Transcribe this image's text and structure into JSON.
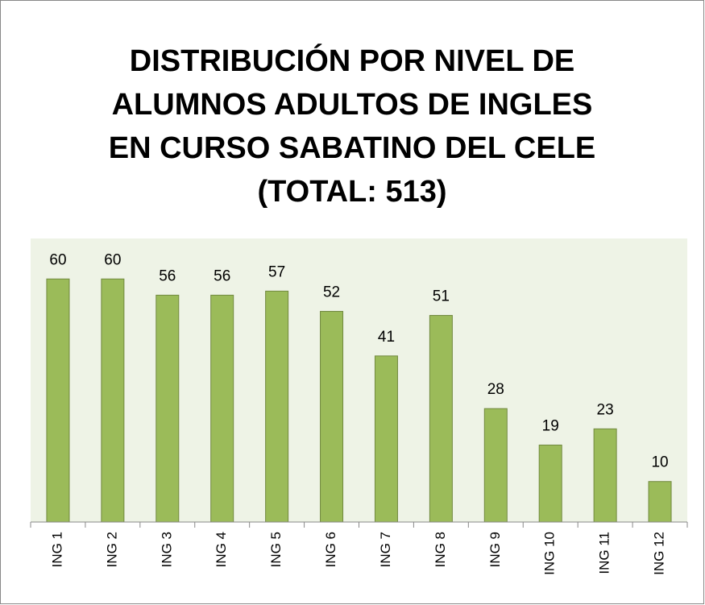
{
  "chart_data": {
    "type": "bar",
    "title": [
      "DISTRIBUCIÓN POR NIVEL DE",
      "ALUMNOS ADULTOS DE INGLES",
      "EN CURSO SABATINO DEL CELE",
      "(TOTAL: 513)"
    ],
    "categories": [
      "ING 1",
      "ING 2",
      "ING 3",
      "ING 4",
      "ING 5",
      "ING 6",
      "ING 7",
      "ING 8",
      "ING 9",
      "ING 10",
      "ING 11",
      "ING 12"
    ],
    "values": [
      60,
      60,
      56,
      56,
      57,
      52,
      41,
      51,
      28,
      19,
      23,
      10
    ],
    "color": "#9bbb59",
    "ylim": [
      0,
      70
    ]
  }
}
